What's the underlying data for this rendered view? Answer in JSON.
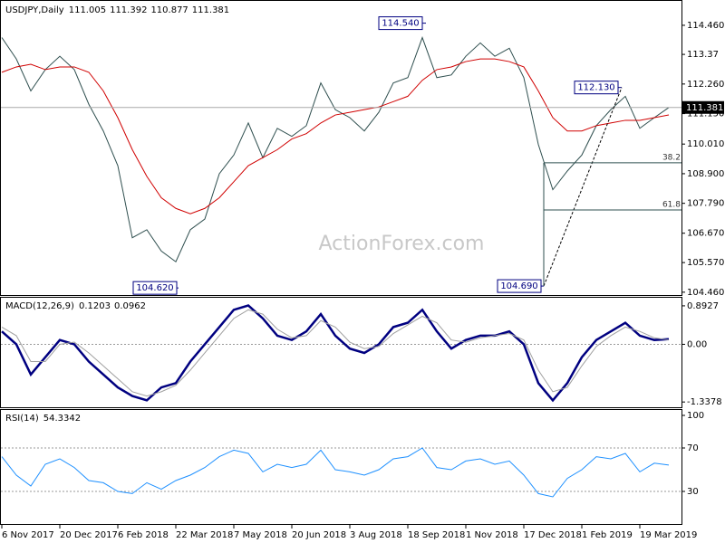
{
  "chart_data": [
    {
      "type": "line",
      "title": "USDJPY,Daily",
      "ohlc": [
        111.005,
        111.392,
        110.877,
        111.381
      ],
      "last_price": 111.381,
      "ylim": [
        104.32,
        115.34
      ],
      "yticks": [
        {
          "value": 114.46,
          "label": "114.460"
        },
        113.37,
        {
          "value": 112.26,
          "label": "112.260"
        },
        {
          "value": 111.15,
          "label": "111.150"
        },
        {
          "value": 110.01,
          "label": "110.010"
        },
        {
          "value": 108.9,
          "label": "108.900"
        },
        {
          "value": 107.79,
          "label": "107.790"
        },
        {
          "value": 106.67,
          "label": "106.670"
        },
        {
          "value": 105.57,
          "label": "105.570"
        },
        {
          "value": 104.46,
          "label": "104.460"
        }
      ],
      "series": [
        {
          "color": "#2f4f4f",
          "values": [
            114.0,
            113.2,
            112.0,
            112.8,
            113.3,
            112.8,
            111.5,
            110.5,
            109.2,
            106.5,
            106.8,
            106.0,
            105.6,
            106.8,
            107.2,
            108.9,
            109.6,
            110.8,
            109.5,
            110.6,
            110.3,
            110.7,
            112.3,
            111.3,
            111.0,
            110.5,
            111.2,
            112.3,
            112.5,
            114.0,
            112.5,
            112.6,
            113.3,
            113.8,
            113.3,
            113.6,
            112.5,
            110.0,
            108.3,
            109.0,
            109.6,
            110.7,
            111.3,
            111.8,
            110.6,
            111.0,
            111.38
          ]
        },
        {
          "color": "#d00000",
          "values": [
            112.7,
            112.9,
            113.0,
            112.8,
            112.9,
            112.9,
            112.7,
            112.0,
            111.0,
            109.8,
            108.8,
            108.0,
            107.6,
            107.4,
            107.6,
            108.0,
            108.6,
            109.2,
            109.5,
            109.8,
            110.2,
            110.4,
            110.8,
            111.1,
            111.2,
            111.3,
            111.4,
            111.6,
            111.8,
            112.4,
            112.8,
            112.9,
            113.1,
            113.2,
            113.2,
            113.1,
            112.9,
            112.0,
            111.0,
            110.5,
            110.5,
            110.7,
            110.8,
            110.9,
            110.9,
            111.0,
            111.1
          ]
        }
      ],
      "annotations": [
        {
          "value": 114.54,
          "label": "114.540"
        },
        {
          "value": 104.62,
          "label": "104.620"
        },
        {
          "value": 112.13,
          "label": "112.130"
        },
        {
          "value": 104.69,
          "label": "104.690"
        }
      ],
      "fibonacci": [
        {
          "level": 38.2,
          "price": 109.31
        },
        {
          "level": 61.8,
          "price": 107.54
        }
      ],
      "watermark": "ActionForex.com"
    },
    {
      "type": "line",
      "title": "MACD(12,26,9)",
      "readout": [
        0.1203,
        0.0962
      ],
      "ylim": [
        -1.46,
        1.08
      ],
      "yticks": [
        0.8927,
        {
          "value": 0,
          "label": "0.00"
        },
        -1.3378
      ],
      "levels": [
        0
      ],
      "series": [
        {
          "color": "#000080",
          "values": [
            0.3,
            0.0,
            -0.7,
            -0.3,
            0.1,
            0.0,
            -0.4,
            -0.7,
            -1.0,
            -1.2,
            -1.3,
            -1.0,
            -0.9,
            -0.4,
            0.0,
            0.4,
            0.8,
            0.9,
            0.6,
            0.2,
            0.1,
            0.3,
            0.7,
            0.2,
            -0.1,
            -0.2,
            0.0,
            0.4,
            0.5,
            0.8,
            0.3,
            -0.1,
            0.1,
            0.2,
            0.2,
            0.3,
            0.0,
            -0.9,
            -1.3,
            -0.9,
            -0.3,
            0.1,
            0.3,
            0.5,
            0.2,
            0.1,
            0.12
          ]
        },
        {
          "color": "#a0a0a0",
          "values": [
            0.4,
            0.2,
            -0.4,
            -0.4,
            0.0,
            0.05,
            -0.2,
            -0.5,
            -0.8,
            -1.1,
            -1.2,
            -1.1,
            -0.95,
            -0.6,
            -0.2,
            0.2,
            0.6,
            0.8,
            0.7,
            0.35,
            0.15,
            0.2,
            0.55,
            0.4,
            0.05,
            -0.1,
            -0.05,
            0.25,
            0.45,
            0.65,
            0.5,
            0.1,
            0.05,
            0.15,
            0.2,
            0.25,
            0.1,
            -0.6,
            -1.1,
            -1.0,
            -0.5,
            -0.05,
            0.2,
            0.4,
            0.3,
            0.15,
            0.1
          ]
        }
      ]
    },
    {
      "type": "line",
      "title": "RSI(14)",
      "readout": 54.3342,
      "ylim": [
        0,
        105
      ],
      "yticks": [
        100,
        70,
        30
      ],
      "levels": [
        70,
        30
      ],
      "categories": [
        "6 Nov 2017",
        null,
        null,
        null,
        "20 Dec 2017",
        null,
        null,
        null,
        "6 Feb 2018",
        null,
        null,
        null,
        "22 Mar 2018",
        null,
        null,
        null,
        "7 May 2018",
        null,
        null,
        null,
        "20 Jun 2018",
        null,
        null,
        null,
        "3 Aug 2018",
        null,
        null,
        null,
        "18 Sep 2018",
        null,
        null,
        null,
        "1 Nov 2018",
        null,
        null,
        null,
        "17 Dec 2018",
        null,
        null,
        null,
        "1 Feb 2019",
        null,
        null,
        null,
        "19 Mar 2019",
        null,
        null
      ],
      "series": [
        {
          "color": "#1e90ff",
          "values": [
            62,
            45,
            35,
            55,
            60,
            52,
            40,
            38,
            30,
            28,
            38,
            32,
            40,
            45,
            52,
            62,
            68,
            65,
            48,
            55,
            52,
            55,
            68,
            50,
            48,
            45,
            50,
            60,
            62,
            70,
            52,
            50,
            58,
            60,
            55,
            58,
            45,
            28,
            25,
            42,
            50,
            62,
            60,
            65,
            48,
            56,
            54.3
          ]
        }
      ]
    }
  ]
}
